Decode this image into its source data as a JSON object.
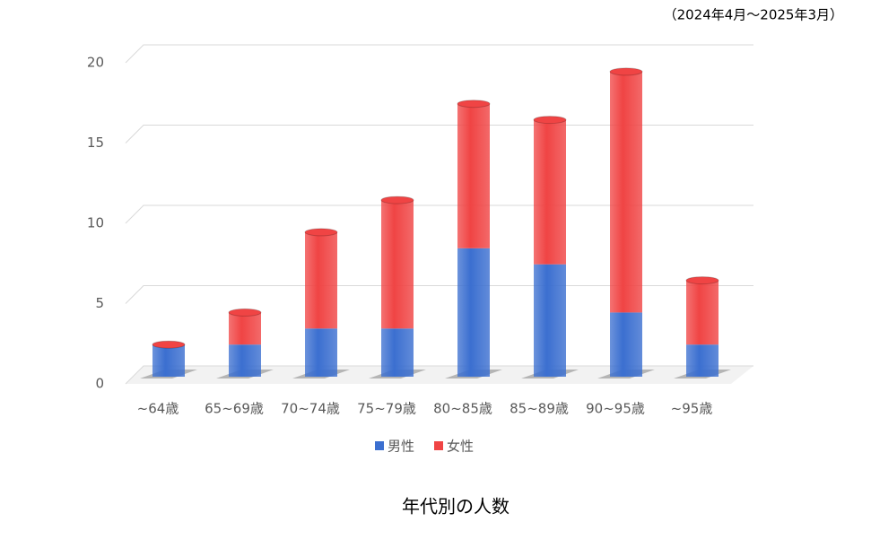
{
  "chart_data": {
    "type": "stacked_bar_3d",
    "title": "年代別の人数",
    "note": "（2024年4月～2025年3月）",
    "categories": [
      "~64歳",
      "65~69歳",
      "70~74歳",
      "75~79歳",
      "80~85歳",
      "85~89歳",
      "90~95歳",
      "~95歳"
    ],
    "series": [
      {
        "name": "男性",
        "color": "#3b6fd0",
        "values": [
          2,
          2,
          3,
          3,
          8,
          7,
          4,
          2
        ]
      },
      {
        "name": "女性",
        "color": "#f04444",
        "values": [
          0,
          2,
          6,
          8,
          9,
          9,
          15,
          4
        ]
      }
    ],
    "ylim": [
      0,
      20
    ],
    "yticks": [
      0,
      5,
      10,
      15,
      20
    ],
    "grid": true,
    "legend": "bottom"
  }
}
